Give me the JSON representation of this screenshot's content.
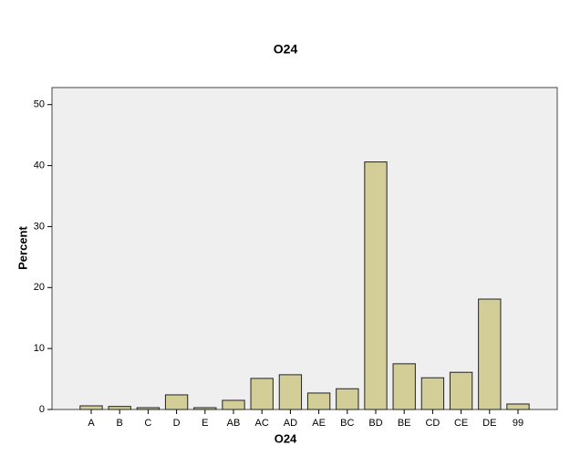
{
  "chart_data": {
    "type": "bar",
    "title": "O24",
    "x_label": "O24",
    "y_label": "Percent",
    "categories": [
      "A",
      "B",
      "C",
      "D",
      "E",
      "AB",
      "AC",
      "AD",
      "AE",
      "BC",
      "BD",
      "BE",
      "CD",
      "CE",
      "DE",
      "99"
    ],
    "values": [
      0.6,
      0.5,
      0.3,
      2.4,
      0.3,
      1.5,
      5.1,
      5.7,
      2.7,
      3.4,
      40.6,
      7.5,
      5.2,
      6.1,
      18.1,
      0.9
    ],
    "color": "#d3ce98",
    "ylim": [
      0,
      52.8
    ],
    "yticks": [
      0,
      10,
      20,
      30,
      40,
      50
    ]
  }
}
